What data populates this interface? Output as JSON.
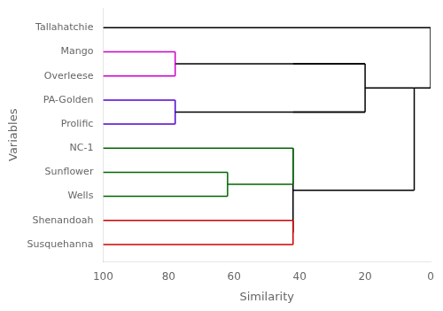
{
  "chart_data": {
    "type": "line",
    "xlabel": "Similarity",
    "ylabel": "Variables",
    "xlim": [
      100,
      0
    ],
    "xticks": [
      100,
      80,
      60,
      40,
      20,
      0
    ],
    "ylim": [
      0.3,
      10.8
    ],
    "yticks": [
      {
        "value": 10,
        "label": "Tallahatchie"
      },
      {
        "value": 9,
        "label": "Mango"
      },
      {
        "value": 8,
        "label": "Overleese"
      },
      {
        "value": 7,
        "label": "PA-Golden"
      },
      {
        "value": 6,
        "label": "Prolific"
      },
      {
        "value": 5,
        "label": "NC-1"
      },
      {
        "value": 4,
        "label": "Sunflower"
      },
      {
        "value": 3,
        "label": "Wells"
      },
      {
        "value": 2,
        "label": "Shenandoah"
      },
      {
        "value": 1,
        "label": "Susquehanna"
      }
    ],
    "grid": false,
    "series": [
      {
        "x": [
          100,
          78
        ],
        "values": [
          9,
          9
        ],
        "color": "#cc00cc"
      },
      {
        "x": [
          100,
          78
        ],
        "values": [
          8,
          8
        ],
        "color": "#cc00cc"
      },
      {
        "x": [
          78,
          78
        ],
        "values": [
          9,
          8
        ],
        "color": "#cc00cc"
      },
      {
        "x": [
          100,
          78
        ],
        "values": [
          7,
          7
        ],
        "color": "#5500cc"
      },
      {
        "x": [
          100,
          78
        ],
        "values": [
          6,
          6
        ],
        "color": "#5500cc"
      },
      {
        "x": [
          78,
          78
        ],
        "values": [
          7,
          6
        ],
        "color": "#5500cc"
      },
      {
        "x": [
          100,
          42
        ],
        "values": [
          5,
          5
        ],
        "color": "#006600"
      },
      {
        "x": [
          100,
          62
        ],
        "values": [
          4,
          4
        ],
        "color": "#006600"
      },
      {
        "x": [
          100,
          62
        ],
        "values": [
          3,
          3
        ],
        "color": "#006600"
      },
      {
        "x": [
          62,
          62
        ],
        "values": [
          4,
          3
        ],
        "color": "#006600"
      },
      {
        "x": [
          62,
          42
        ],
        "values": [
          3.5,
          3.5
        ],
        "color": "#006600"
      },
      {
        "x": [
          42,
          42
        ],
        "values": [
          5,
          3.5
        ],
        "color": "#006600"
      },
      {
        "x": [
          100,
          42
        ],
        "values": [
          2,
          2
        ],
        "color": "#cc0000"
      },
      {
        "x": [
          100,
          42
        ],
        "values": [
          1,
          1
        ],
        "color": "#cc0000"
      },
      {
        "x": [
          42,
          42
        ],
        "values": [
          2,
          1
        ],
        "color": "#cc0000"
      },
      {
        "x": [
          42,
          42
        ],
        "values": [
          5,
          1.5
        ],
        "color": "#000000"
      },
      {
        "x": [
          42,
          20
        ],
        "values": [
          8.5,
          8.5
        ],
        "color": "#000000"
      },
      {
        "x": [
          42,
          20
        ],
        "values": [
          6.5,
          6.5
        ],
        "color": "#000000"
      },
      {
        "x": [
          20,
          20
        ],
        "values": [
          8.5,
          6.5
        ],
        "color": "#000000"
      },
      {
        "x": [
          78,
          20
        ],
        "values": [
          8.5,
          8.5
        ],
        "color": "#000000"
      },
      {
        "x": [
          78,
          20
        ],
        "values": [
          6.5,
          6.5
        ],
        "color": "#000000"
      },
      {
        "x": [
          20,
          5
        ],
        "values": [
          7.5,
          7.5
        ],
        "color": "#000000"
      },
      {
        "x": [
          5,
          5
        ],
        "values": [
          7.5,
          3.25
        ],
        "color": "#000000"
      },
      {
        "x": [
          5,
          42
        ],
        "values": [
          3.25,
          3.25
        ],
        "color": "#000000"
      },
      {
        "x": [
          100,
          0
        ],
        "values": [
          10,
          10
        ],
        "color": "#000000"
      },
      {
        "x": [
          0,
          0
        ],
        "values": [
          10,
          7.5
        ],
        "color": "#000000"
      },
      {
        "x": [
          0,
          5
        ],
        "values": [
          7.5,
          7.5
        ],
        "color": "#000000"
      }
    ]
  }
}
